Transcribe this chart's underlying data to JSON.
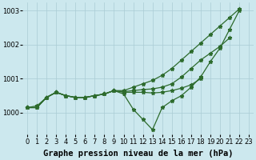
{
  "xlabel": "Graphe pression niveau de la mer (hPa)",
  "x_full": [
    0,
    1,
    2,
    3,
    4,
    5,
    6,
    7,
    8,
    9,
    10,
    11,
    12,
    13,
    14,
    15,
    16,
    17,
    18,
    19,
    20,
    21,
    22,
    23
  ],
  "line_top": {
    "x": [
      0,
      1,
      2,
      3,
      4,
      5,
      6,
      7,
      8,
      9,
      10,
      11,
      12,
      13,
      14,
      15,
      16,
      17,
      18,
      19,
      20,
      21,
      22
    ],
    "y": [
      1000.15,
      1000.15,
      1000.45,
      1000.6,
      1000.5,
      1000.45,
      1000.45,
      1000.5,
      1000.55,
      1000.65,
      1000.65,
      1000.75,
      1000.85,
      1000.95,
      1001.1,
      1001.3,
      1001.55,
      1001.8,
      1002.05,
      1002.3,
      1002.55,
      1002.8,
      1003.05
    ]
  },
  "line_mid": {
    "x": [
      0,
      1,
      2,
      3,
      4,
      5,
      6,
      7,
      8,
      9,
      10,
      11,
      12,
      13,
      14,
      15,
      16,
      17,
      18,
      19,
      20,
      21
    ],
    "y": [
      1000.15,
      1000.15,
      1000.45,
      1000.6,
      1000.5,
      1000.45,
      1000.45,
      1000.5,
      1000.55,
      1000.65,
      1000.62,
      1000.65,
      1000.68,
      1000.7,
      1000.75,
      1000.85,
      1001.05,
      1001.3,
      1001.55,
      1001.75,
      1001.95,
      1002.2
    ]
  },
  "line_low": {
    "x": [
      0,
      1,
      2,
      3,
      4,
      5,
      6,
      7,
      8,
      9,
      10,
      11,
      12,
      13,
      14,
      15,
      16,
      17,
      18
    ],
    "y": [
      1000.15,
      1000.15,
      1000.45,
      1000.6,
      1000.5,
      1000.45,
      1000.45,
      1000.5,
      1000.55,
      1000.65,
      1000.6,
      1000.6,
      1000.6,
      1000.58,
      1000.6,
      1000.65,
      1000.72,
      1000.82,
      1001.0
    ]
  },
  "line_dip": {
    "x": [
      0,
      1,
      2,
      3,
      4,
      5,
      6,
      7,
      8,
      9,
      10,
      11,
      12,
      13,
      14,
      15,
      16,
      17,
      18,
      19,
      20,
      21,
      22
    ],
    "y": [
      1000.15,
      1000.2,
      1000.45,
      1000.6,
      1000.5,
      1000.45,
      1000.45,
      1000.5,
      1000.55,
      1000.65,
      1000.55,
      1000.1,
      999.8,
      999.5,
      1000.15,
      1000.35,
      1000.5,
      1000.75,
      1001.05,
      1001.5,
      1001.9,
      1002.45,
      1003.0
    ]
  },
  "bg_color": "#cce8ee",
  "line_color": "#2d6b2d",
  "grid_color": "#aaccd4",
  "ylim": [
    999.35,
    1003.25
  ],
  "yticks": [
    1000,
    1001,
    1002,
    1003
  ],
  "xticks": [
    0,
    1,
    2,
    3,
    4,
    5,
    6,
    7,
    8,
    9,
    10,
    11,
    12,
    13,
    14,
    15,
    16,
    17,
    18,
    19,
    20,
    21,
    22,
    23
  ],
  "marker": "*",
  "markersize": 3.5,
  "linewidth": 0.9,
  "xlabel_fontsize": 7.5,
  "tick_fontsize": 6
}
